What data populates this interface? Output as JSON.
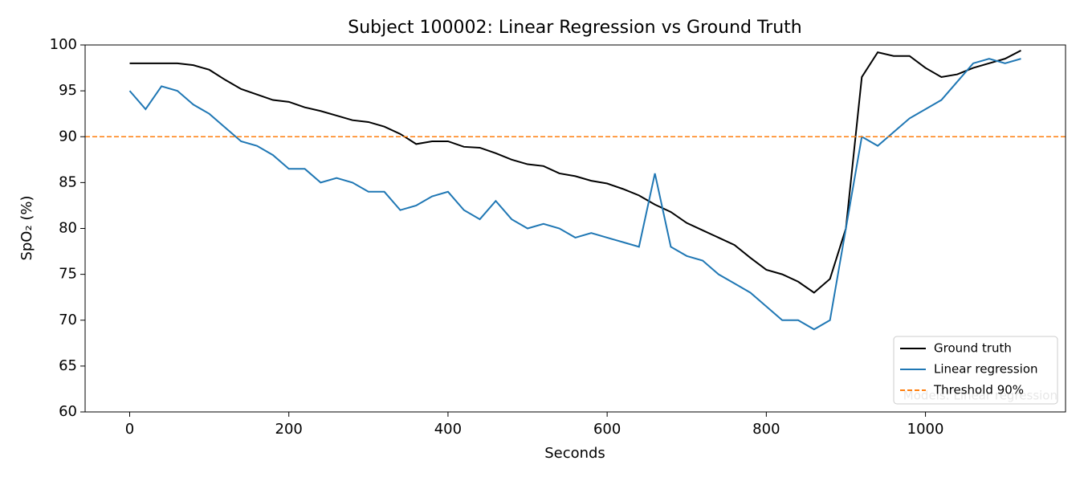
{
  "chart_data": {
    "type": "line",
    "title": "Subject 100002: Linear Regression vs Ground Truth",
    "xlabel": "Seconds",
    "ylabel": "SpO₂ (%)",
    "annotation": "Models: Linear regression",
    "x": [
      0,
      20,
      40,
      60,
      80,
      100,
      120,
      140,
      160,
      180,
      200,
      220,
      240,
      260,
      280,
      300,
      320,
      340,
      360,
      380,
      400,
      420,
      440,
      460,
      480,
      500,
      520,
      540,
      560,
      580,
      600,
      620,
      640,
      660,
      680,
      700,
      720,
      740,
      760,
      780,
      800,
      820,
      840,
      860,
      880,
      900,
      920,
      940,
      960,
      980,
      1000,
      1020,
      1040,
      1060,
      1080,
      1100,
      1120
    ],
    "series": [
      {
        "name": "Ground truth",
        "color": "#000000",
        "values": [
          98,
          98,
          98,
          98,
          97.8,
          97.3,
          96.2,
          95.2,
          94.6,
          94,
          93.8,
          93.2,
          92.8,
          92.3,
          91.8,
          91.6,
          91.1,
          90.3,
          89.2,
          89.5,
          89.5,
          88.9,
          88.8,
          88.2,
          87.5,
          87,
          86.8,
          86,
          85.7,
          85.2,
          84.9,
          84.3,
          83.6,
          82.6,
          81.8,
          80.6,
          79.8,
          79,
          78.2,
          76.8,
          75.5,
          75,
          74.2,
          73,
          74.5,
          80,
          96.5,
          99.2,
          98.8,
          98.8,
          97.5,
          96.5,
          96.8,
          97.5,
          98,
          98.5,
          99.4
        ]
      },
      {
        "name": "Linear regression",
        "color": "#1f77b4",
        "values": [
          95,
          93,
          95.5,
          95,
          93.5,
          92.5,
          91,
          89.5,
          89,
          88,
          86.5,
          86.5,
          85,
          85.5,
          85,
          84,
          84,
          82,
          82.5,
          83.5,
          84,
          82,
          81,
          83,
          81,
          80,
          80.5,
          80,
          79,
          79.5,
          79,
          78.5,
          78,
          86,
          78,
          77,
          76.5,
          75,
          74,
          73,
          71.5,
          70,
          70,
          69,
          70,
          80,
          90,
          89,
          90.5,
          92,
          93,
          94,
          96,
          98,
          98.5,
          98,
          98.5
        ]
      }
    ],
    "threshold": {
      "name": "Threshold 90%",
      "value": 90,
      "color": "#ff7f0e"
    },
    "xlim": [
      -56,
      1176
    ],
    "xticks": [
      0,
      200,
      400,
      600,
      800,
      1000
    ],
    "ylim": [
      60,
      100
    ],
    "yticks": [
      60,
      65,
      70,
      75,
      80,
      85,
      90,
      95,
      100
    ],
    "legend": "lower right"
  }
}
